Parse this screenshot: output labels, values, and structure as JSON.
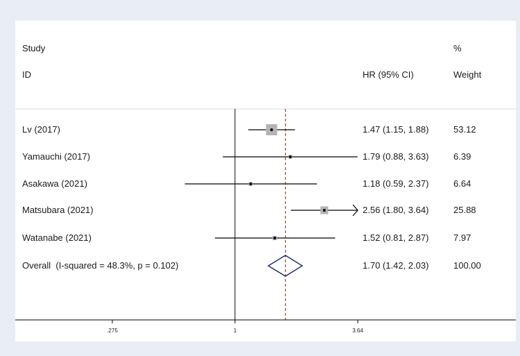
{
  "chart_data": {
    "type": "forest",
    "scale": "log",
    "header": {
      "study_line1": "Study",
      "study_line2": "ID",
      "effect_label": "HR (95% CI)",
      "weight_line1": "%",
      "weight_line2": "Weight"
    },
    "null_value": 1,
    "overall_line": 1.7,
    "ticks": [
      {
        "value": 0.275,
        "label": ".275"
      },
      {
        "value": 1,
        "label": "1"
      },
      {
        "value": 3.64,
        "label": "3.64"
      }
    ],
    "xlim": [
      0.275,
      3.64
    ],
    "studies": [
      {
        "label": "Lv (2017)",
        "hr": 1.47,
        "lo": 1.15,
        "hi": 1.88,
        "ci_text": "1.47 (1.15, 1.88)",
        "weight": 53.12,
        "weight_text": "53.12"
      },
      {
        "label": "Yamauchi (2017)",
        "hr": 1.79,
        "lo": 0.88,
        "hi": 3.63,
        "ci_text": "1.79 (0.88, 3.63)",
        "weight": 6.39,
        "weight_text": "6.39"
      },
      {
        "label": "Asakawa (2021)",
        "hr": 1.18,
        "lo": 0.59,
        "hi": 2.37,
        "ci_text": "1.18 (0.59, 2.37)",
        "weight": 6.64,
        "weight_text": "6.64"
      },
      {
        "label": "Matsubara (2021)",
        "hr": 2.56,
        "lo": 1.8,
        "hi": 3.64,
        "ci_text": "2.56 (1.80, 3.64)",
        "weight": 25.88,
        "weight_text": "25.88",
        "arrow_right": true
      },
      {
        "label": "Watanabe (2021)",
        "hr": 1.52,
        "lo": 0.81,
        "hi": 2.87,
        "ci_text": "1.52 (0.81, 2.87)",
        "weight": 7.97,
        "weight_text": "7.97"
      }
    ],
    "overall": {
      "label": "Overall  (I-squared = 48.3%, p = 0.102)",
      "hr": 1.7,
      "lo": 1.42,
      "hi": 2.03,
      "ci_text": "1.70 (1.42, 2.03)",
      "weight_text": "100.00"
    },
    "colors": {
      "box": "#b3b3b3",
      "diamond": "#1c2a6b",
      "overall_line": "#8b1a1a",
      "line": "#000000"
    }
  }
}
